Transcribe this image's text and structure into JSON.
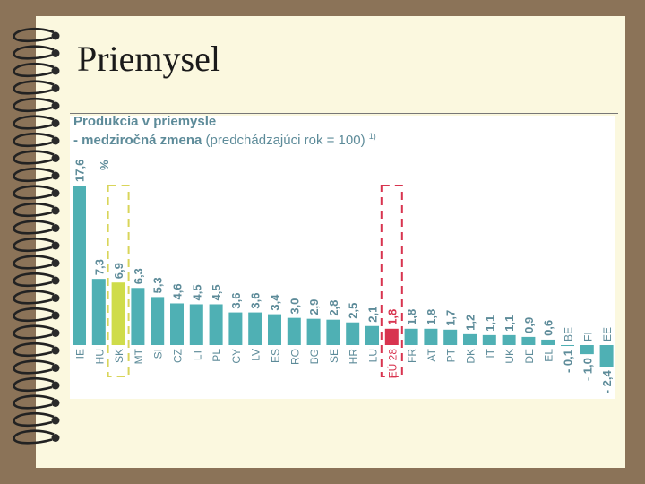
{
  "slide": {
    "title": "Priemysel"
  },
  "chart_data": {
    "type": "bar",
    "title": "Produkcia v priemysle",
    "subtitle_bold": "- medziročná zmena",
    "subtitle_rest": " (predchádzajúci rok = 100)",
    "footnote_mark": "1)",
    "unit": "%",
    "categories": [
      "IE",
      "HU",
      "SK",
      "MT",
      "SI",
      "CZ",
      "LT",
      "PL",
      "CY",
      "LV",
      "ES",
      "RO",
      "BG",
      "SE",
      "HR",
      "LU",
      "EÚ 28",
      "FR",
      "AT",
      "PT",
      "DK",
      "IT",
      "UK",
      "DE",
      "EL",
      "BE",
      "FI",
      "EE"
    ],
    "value_labels": [
      "17,6",
      "7,3",
      "6,9",
      "6,3",
      "5,3",
      "4,6",
      "4,5",
      "4,5",
      "3,6",
      "3,6",
      "3,4",
      "3,0",
      "2,9",
      "2,8",
      "2,5",
      "2,1",
      "1,8",
      "1,8",
      "1,8",
      "1,7",
      "1,2",
      "1,1",
      "1,1",
      "0,9",
      "0,6",
      "- 0,1",
      "- 1,0",
      "- 2,4"
    ],
    "values": [
      17.6,
      7.3,
      6.9,
      6.3,
      5.3,
      4.6,
      4.5,
      4.5,
      3.6,
      3.6,
      3.4,
      3.0,
      2.9,
      2.8,
      2.5,
      2.1,
      1.8,
      1.8,
      1.8,
      1.7,
      1.2,
      1.1,
      1.1,
      0.9,
      0.6,
      -0.1,
      -1.0,
      -2.4
    ],
    "highlight_sk": "SK",
    "highlight_eu": "EÚ 28",
    "colors": {
      "bar": "#4fb0b4",
      "sk": "#cfdc4a",
      "eu": "#d8344f",
      "label": "#5d8b99",
      "sk_box": "#d9d55a",
      "eu_box": "#d8344f"
    }
  }
}
